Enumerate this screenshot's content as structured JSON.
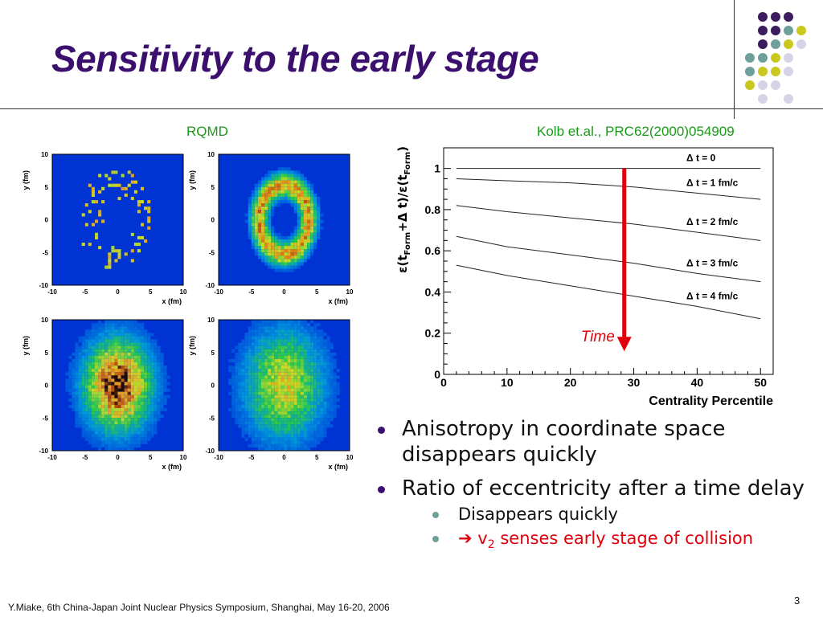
{
  "slide": {
    "title": "Sensitivity to the early stage",
    "left_label": "RQMD",
    "right_label": "Kolb et.al., PRC62(2000)054909",
    "footer": "Y.Miake, 6th China-Japan Joint Nuclear Physics Symposium, Shanghai, May 16-20, 2006",
    "page_number": "3",
    "colors": {
      "title": "#3b0f6e",
      "label": "#1a9a1a",
      "arrow": "#e0000a"
    }
  },
  "bullets": [
    {
      "text": "Anisotropy in coordinate space disappears quickly"
    },
    {
      "text": "Ratio of eccentricity after a time delay",
      "sub": [
        {
          "text": "Disappears quickly"
        },
        {
          "arrow": "➔",
          "v": "v",
          "sub_index": "2",
          "rest": " senses early stage of collision"
        }
      ]
    }
  ],
  "chart_data": [
    {
      "type": "heatmap",
      "title": "",
      "xlabel": "x (fm)",
      "ylabel": "y (fm)",
      "xlim": [
        -10,
        10
      ],
      "ylim": [
        -10,
        10
      ],
      "x_ticks": [
        "-10",
        "-5",
        "0",
        "5",
        "10"
      ],
      "y_ticks": [
        "-10",
        "-5",
        "0",
        "5",
        "10"
      ],
      "panels": [
        {
          "name": "top-left",
          "shape": "ring",
          "density": "low"
        },
        {
          "name": "top-right",
          "shape": "ring",
          "density": "medium"
        },
        {
          "name": "bottom-left",
          "shape": "filled-ellipse",
          "density": "high"
        },
        {
          "name": "bottom-right",
          "shape": "diffuse",
          "density": "medium"
        }
      ]
    },
    {
      "type": "line",
      "xlabel": "Centrality Percentile",
      "ylabel_parts": [
        "ε(t",
        "Form",
        "+Δ t)/ε(t",
        "Form",
        ")"
      ],
      "xlim": [
        0,
        52
      ],
      "ylim": [
        0,
        1.1
      ],
      "x_ticks": [
        0,
        10,
        20,
        30,
        40,
        50
      ],
      "y_ticks": [
        0,
        0.2,
        0.4,
        0.6,
        0.8,
        1
      ],
      "series": [
        {
          "name": "Δ t = 0",
          "x": [
            2,
            50
          ],
          "y": [
            1.0,
            1.0
          ]
        },
        {
          "name": "Δ t = 1 fm/c",
          "x": [
            2,
            10,
            20,
            30,
            40,
            50
          ],
          "y": [
            0.95,
            0.94,
            0.93,
            0.91,
            0.88,
            0.85
          ]
        },
        {
          "name": "Δ t = 2 fm/c",
          "x": [
            2,
            10,
            20,
            30,
            40,
            50
          ],
          "y": [
            0.82,
            0.79,
            0.76,
            0.73,
            0.69,
            0.65
          ]
        },
        {
          "name": "Δ t = 3 fm/c",
          "x": [
            2,
            10,
            20,
            30,
            40,
            50
          ],
          "y": [
            0.67,
            0.62,
            0.58,
            0.54,
            0.49,
            0.45
          ]
        },
        {
          "name": "Δ t = 4 fm/c",
          "x": [
            2,
            10,
            20,
            30,
            40,
            50
          ],
          "y": [
            0.53,
            0.48,
            0.43,
            0.38,
            0.33,
            0.27
          ]
        }
      ],
      "annotation": {
        "text": "Time",
        "arrow_x": 28.5,
        "arrow_from": 1.0,
        "arrow_to": 0.12
      }
    }
  ]
}
